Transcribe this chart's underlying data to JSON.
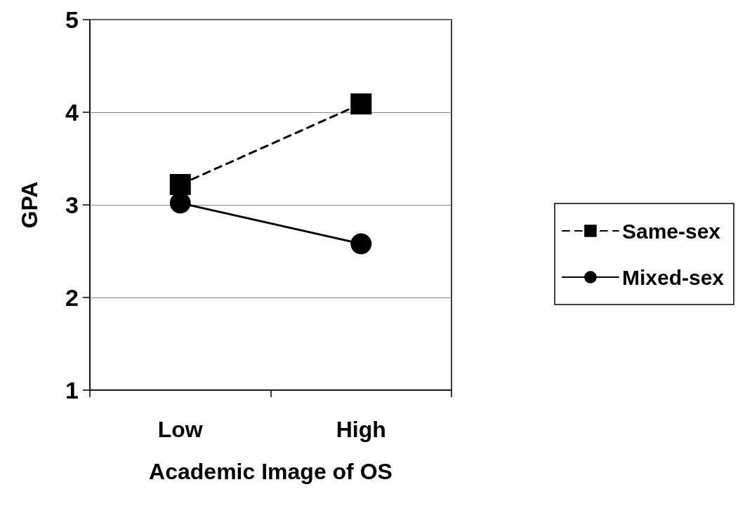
{
  "chart_data": {
    "type": "line",
    "xlabel": "Academic Image of OS",
    "ylabel": "GPA",
    "categories": [
      "Low",
      "High"
    ],
    "series": [
      {
        "name": "Same-sex",
        "color": "#000000",
        "values": [
          3.22,
          4.09
        ],
        "marker": "square",
        "line_style": "dashed"
      },
      {
        "name": "Mixed-sex",
        "color": "#000000",
        "values": [
          3.02,
          2.58
        ],
        "marker": "circle",
        "line_style": "solid"
      }
    ],
    "ylim": [
      1,
      5
    ],
    "yticks": [
      1,
      2,
      3,
      4,
      5
    ],
    "grid": "y",
    "legend": "right"
  }
}
